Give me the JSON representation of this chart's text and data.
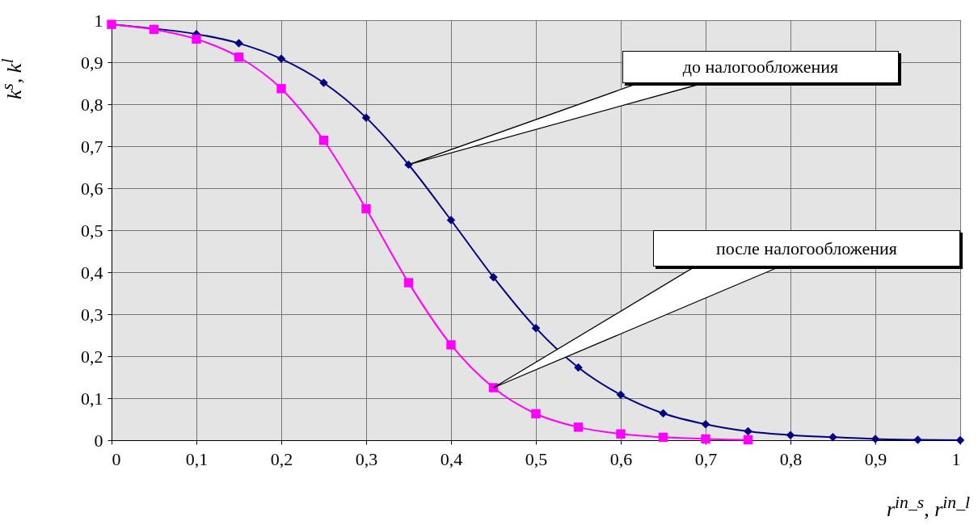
{
  "chart_data": {
    "type": "line",
    "xlabel": "r$^{in_s}$, r$^{in_l}$",
    "ylabel": "k$^{s}$, k$^{l}$",
    "xlim": [
      0,
      1
    ],
    "xticks": [
      0,
      {
        "value": 0.1,
        "label": "0,1"
      },
      {
        "value": 0.2,
        "label": "0,2"
      },
      {
        "value": 0.3,
        "label": "0,3"
      },
      {
        "value": 0.4,
        "label": "0,4"
      },
      {
        "value": 0.5,
        "label": "0,5"
      },
      {
        "value": 0.6,
        "label": "0,6"
      },
      {
        "value": 0.7,
        "label": "0,7"
      },
      {
        "value": 0.8,
        "label": "0,8"
      },
      {
        "value": 0.9,
        "label": "0,9"
      },
      1
    ],
    "ylim": [
      0,
      1
    ],
    "yticks": [
      0,
      {
        "value": 0.1,
        "label": "0,1"
      },
      {
        "value": 0.2,
        "label": "0,2"
      },
      {
        "value": 0.3,
        "label": "0,3"
      },
      {
        "value": 0.4,
        "label": "0,4"
      },
      {
        "value": 0.5,
        "label": "0,5"
      },
      {
        "value": 0.6,
        "label": "0,6"
      },
      {
        "value": 0.7,
        "label": "0,7"
      },
      {
        "value": 0.8,
        "label": "0,8"
      },
      {
        "value": 0.9,
        "label": "0,9"
      },
      1
    ],
    "grid": true,
    "line_style": "solid",
    "series": [
      {
        "color": "#000080",
        "marker": "diamond",
        "x": [
          0,
          0.05,
          0.1,
          0.15,
          0.2,
          0.25,
          0.3,
          0.35,
          0.4,
          0.45,
          0.5,
          0.55,
          0.6,
          0.65,
          0.7,
          0.75,
          0.8,
          0.85,
          0.9,
          0.95,
          1
        ],
        "values": [
          0.99,
          0.98,
          0.967,
          0.945,
          0.908,
          0.851,
          0.768,
          0.656,
          0.524,
          0.388,
          0.267,
          0.173,
          0.108,
          0.064,
          0.038,
          0.021,
          0.012,
          0.007,
          0.003,
          0.001,
          0
        ]
      },
      {
        "color": "#ff00ff",
        "marker": "square",
        "x": [
          0,
          0.05,
          0.1,
          0.15,
          0.2,
          0.25,
          0.3,
          0.35,
          0.4,
          0.45,
          0.5,
          0.55,
          0.6,
          0.65,
          0.7,
          0.75
        ],
        "values": [
          0.99,
          0.978,
          0.955,
          0.912,
          0.837,
          0.714,
          0.551,
          0.375,
          0.227,
          0.125,
          0.063,
          0.031,
          0.015,
          0.007,
          0.003,
          0.001
        ]
      }
    ],
    "annotations": [
      {
        "text": "до налогообложения",
        "x": 0.35,
        "y": 0.656
      },
      {
        "text": "после налогообложения",
        "x": 0.45,
        "y": 0.125
      }
    ]
  }
}
